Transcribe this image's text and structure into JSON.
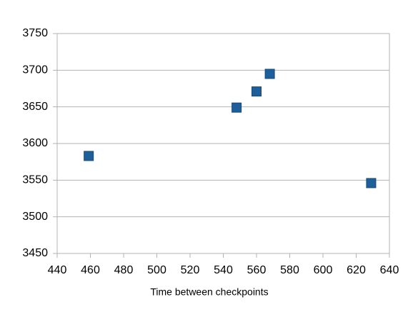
{
  "chart_data": {
    "type": "scatter",
    "x_label": "Time between checkpoints",
    "x": [
      459,
      548,
      560,
      568,
      629
    ],
    "values": [
      3583,
      3649,
      3671,
      3695,
      3546
    ],
    "color": "#1f5f99",
    "xlim": [
      440,
      640
    ],
    "xticks": [
      440,
      460,
      480,
      500,
      520,
      540,
      560,
      580,
      600,
      620,
      640
    ],
    "ylim": [
      3450,
      3750
    ],
    "yticks": [
      3450,
      3500,
      3550,
      3600,
      3650,
      3700,
      3750
    ],
    "grid": true
  }
}
